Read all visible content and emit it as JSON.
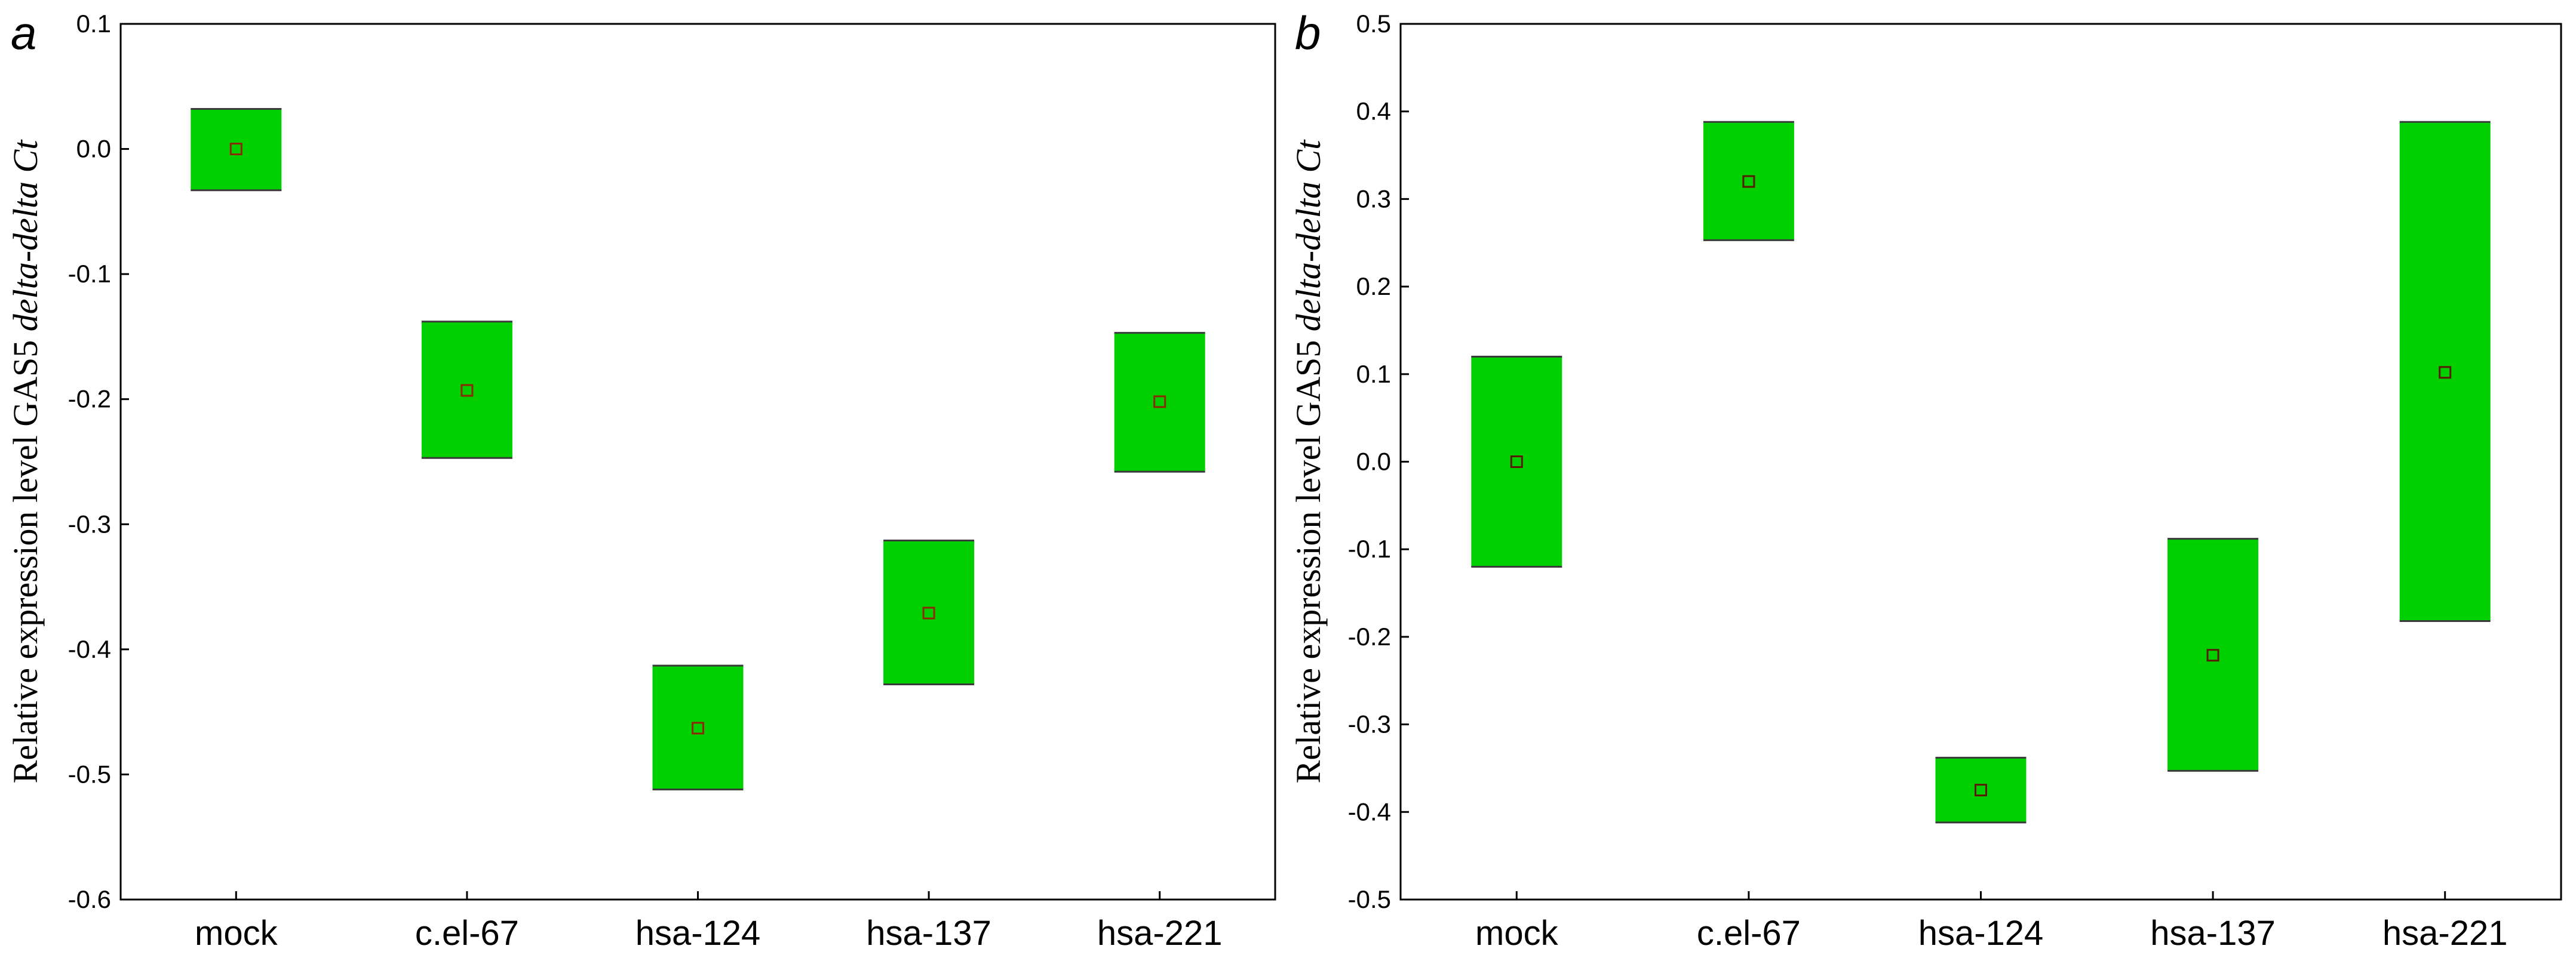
{
  "chart_data": [
    {
      "panel": "a",
      "type": "box",
      "ylabel": "Relative expression level GAS5",
      "ylabel_italic": "delta-delta Ct",
      "xlabel": "",
      "categories": [
        "mock",
        "c.el-67",
        "hsa-124",
        "hsa-137",
        "hsa-221"
      ],
      "ylim": [
        -0.6,
        0.1
      ],
      "yticks": [
        0.1,
        0.0,
        -0.1,
        -0.2,
        -0.3,
        -0.4,
        -0.5,
        -0.6
      ],
      "ytick_labels": [
        "0.1",
        "0.0",
        "-0.1",
        "-0.2",
        "-0.3",
        "-0.4",
        "-0.5",
        "-0.6"
      ],
      "series": [
        {
          "mean": [
            0.0,
            -0.193,
            -0.463,
            -0.371,
            -0.202
          ],
          "upper": [
            0.032,
            -0.138,
            -0.413,
            -0.313,
            -0.147
          ],
          "lower": [
            -0.033,
            -0.247,
            -0.512,
            -0.428,
            -0.258
          ]
        }
      ],
      "grid": false,
      "box_color": "#00d000",
      "marker_color": "#8b2a00"
    },
    {
      "panel": "b",
      "type": "box",
      "ylabel": "Relative expression level GAS5",
      "ylabel_italic": "delta-delta Ct",
      "xlabel": "",
      "categories": [
        "mock",
        "c.el-67",
        "hsa-124",
        "hsa-137",
        "hsa-221"
      ],
      "ylim": [
        -0.5,
        0.5
      ],
      "yticks": [
        0.5,
        0.4,
        0.3,
        0.2,
        0.1,
        0.0,
        -0.1,
        -0.2,
        -0.3,
        -0.4,
        -0.5
      ],
      "ytick_labels": [
        "0.5",
        "0.4",
        "0.3",
        "0.2",
        "0.1",
        "0.0",
        "-0.1",
        "-0.2",
        "-0.3",
        "-0.4",
        "-0.5"
      ],
      "series": [
        {
          "mean": [
            0.0,
            0.32,
            -0.375,
            -0.221,
            0.102
          ],
          "upper": [
            0.12,
            0.388,
            -0.338,
            -0.088,
            0.388
          ],
          "lower": [
            -0.12,
            0.253,
            -0.412,
            -0.353,
            -0.182
          ]
        }
      ],
      "grid": false,
      "box_color": "#00d000",
      "marker_color": "#5a1a00"
    }
  ]
}
